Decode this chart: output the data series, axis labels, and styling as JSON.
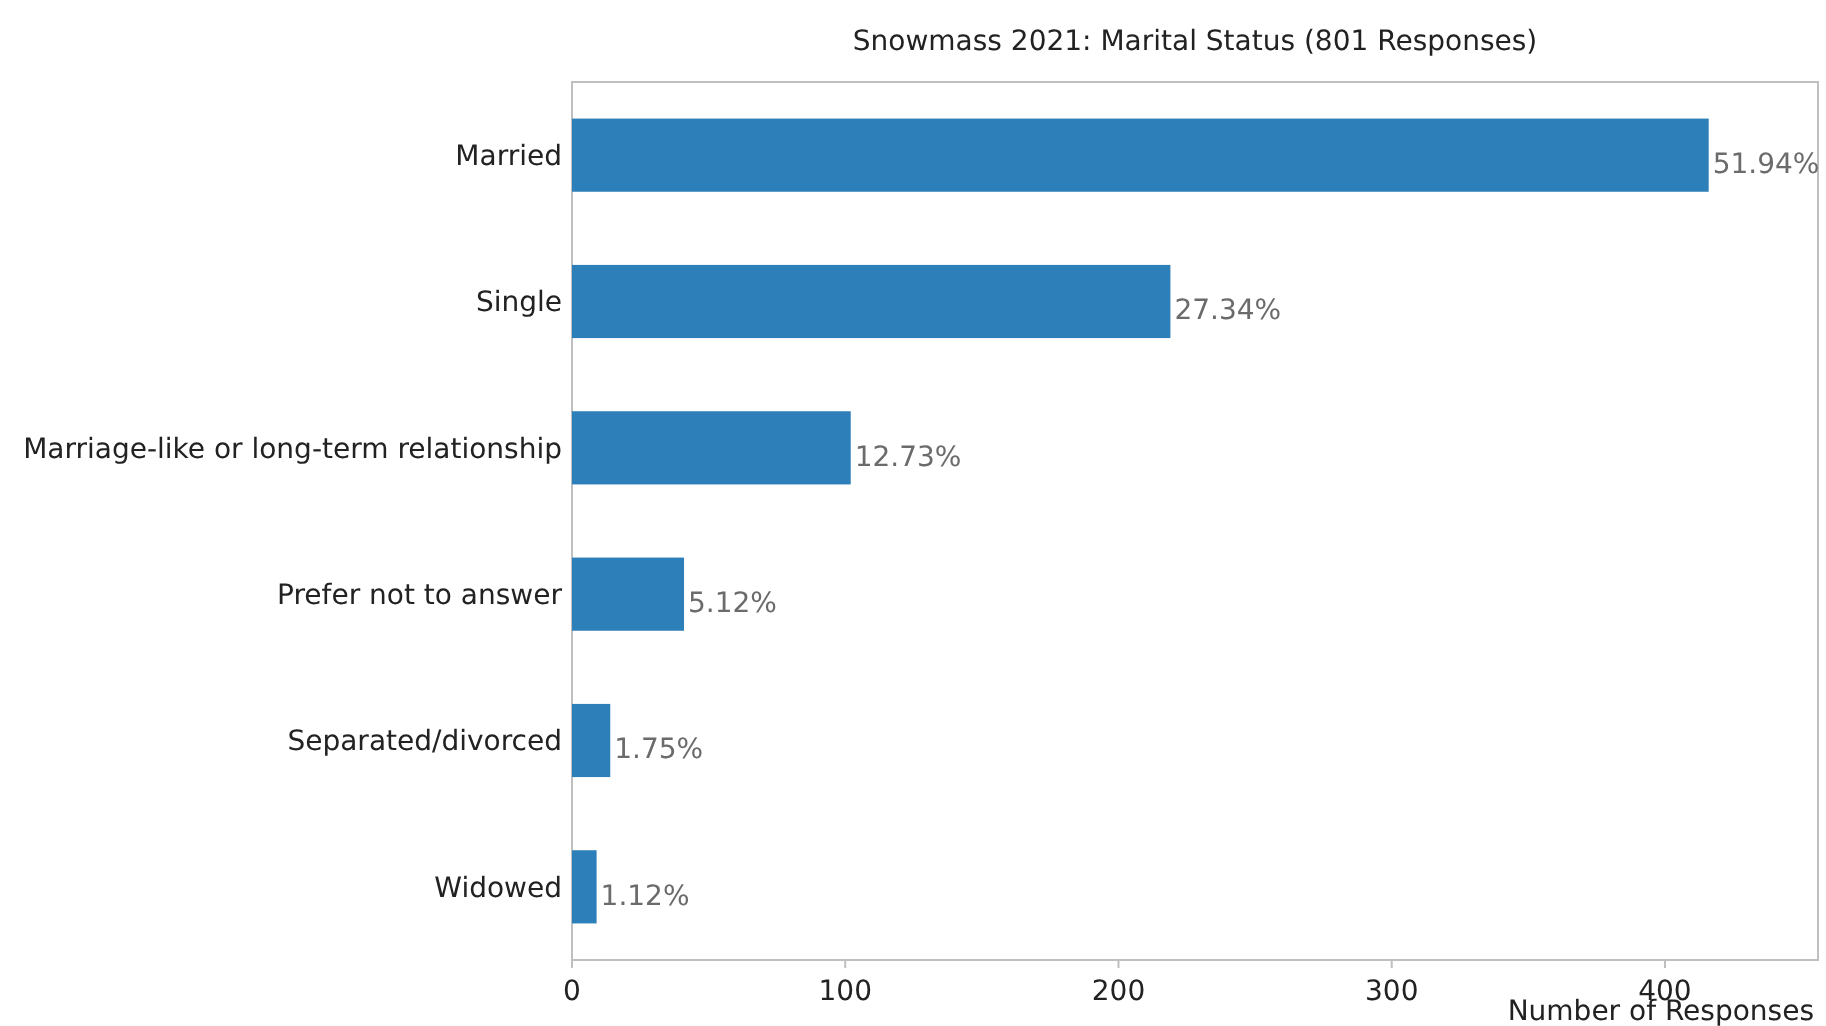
{
  "chart_data": {
    "type": "bar",
    "orientation": "horizontal",
    "title": "Snowmass 2021: Marital Status (801 Responses)",
    "xlabel": "Number of Responses",
    "categories": [
      "Married",
      "Single",
      "Marriage-like or long-term relationship",
      "Prefer not to answer",
      "Separated/divorced",
      "Widowed"
    ],
    "values": [
      416,
      219,
      102,
      41,
      14,
      9
    ],
    "annotations": [
      {
        "text": "51.94%",
        "x": 416,
        "y": "Married"
      },
      {
        "text": "27.34%",
        "x": 219,
        "y": "Single"
      },
      {
        "text": "12.73%",
        "x": 102,
        "y": "Marriage-like or long-term relationship"
      },
      {
        "text": "5.12%",
        "x": 41,
        "y": "Prefer not to answer"
      },
      {
        "text": "1.75%",
        "x": 14,
        "y": "Separated/divorced"
      },
      {
        "text": "1.12%",
        "x": 9,
        "y": "Widowed"
      }
    ],
    "color": "#2c7fb8",
    "xlim": [
      0,
      456
    ],
    "xticks": [
      0,
      100,
      200,
      300,
      400
    ]
  }
}
